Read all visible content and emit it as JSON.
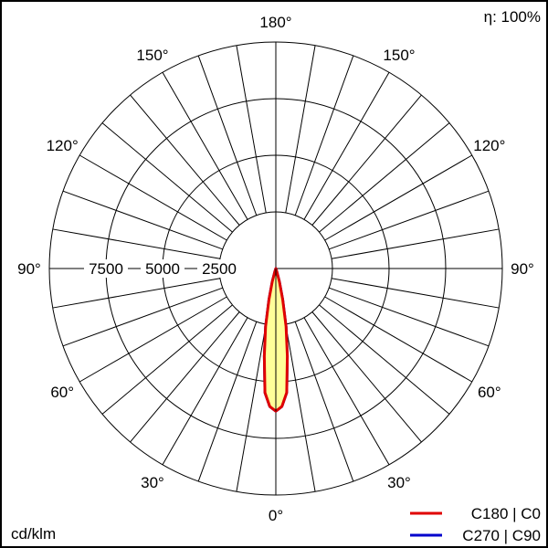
{
  "chart_data": {
    "type": "polar",
    "efficiency_label": "η: 100%",
    "unit_label": "cd/klm",
    "radial_ticks": [
      2500,
      5000,
      7500,
      10000
    ],
    "radial_tick_labels": [
      "7500",
      "5000",
      "2500"
    ],
    "rlim": [
      0,
      10000
    ],
    "angle_step_deg": 10,
    "angle_labels": [
      {
        "angle": 180,
        "text": "180°"
      },
      {
        "angle": 150,
        "text": "150°"
      },
      {
        "angle": 120,
        "text": "120°"
      },
      {
        "angle": 90,
        "text": "90°"
      },
      {
        "angle": 60,
        "text": "60°"
      },
      {
        "angle": 30,
        "text": "30°"
      },
      {
        "angle": 0,
        "text": "0°"
      }
    ],
    "gamma_deg": [
      0,
      2.5,
      5,
      7.5,
      10,
      12.5,
      15,
      17.5,
      20
    ],
    "series": [
      {
        "name": "C180 | C0",
        "color": "#e00000",
        "fill": "#ffff99",
        "intensity": [
          6300,
          6100,
          5500,
          3900,
          2600,
          1400,
          600,
          150,
          0
        ]
      },
      {
        "name": "C270 | C90",
        "color": "#0000cc",
        "intensity": [
          6300,
          6100,
          5500,
          3900,
          2600,
          1400,
          600,
          150,
          0
        ]
      }
    ],
    "legend_placement": "bottom-right"
  }
}
